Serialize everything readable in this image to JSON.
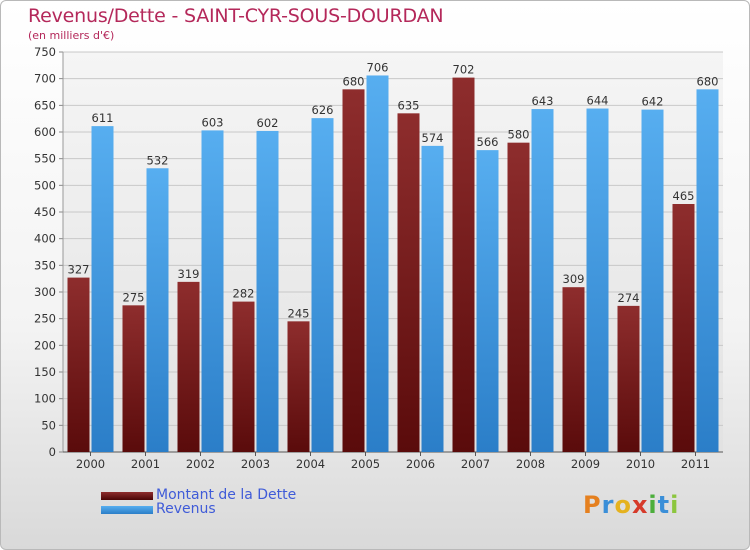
{
  "title": "Revenus/Dette - SAINT-CYR-SOUS-DOURDAN",
  "subtitle": "(en milliers d'€)",
  "colors": {
    "dette": "#7a1a1a",
    "revenus": "#3b93de",
    "title": "#b4285a",
    "legend_text": "#3f5bd8"
  },
  "chart_data": {
    "type": "bar",
    "categories": [
      "2000",
      "2001",
      "2002",
      "2003",
      "2004",
      "2005",
      "2006",
      "2007",
      "2008",
      "2009",
      "2010",
      "2011"
    ],
    "series": [
      {
        "name": "Montant de la Dette",
        "values": [
          327,
          275,
          319,
          282,
          245,
          680,
          635,
          702,
          580,
          309,
          274,
          465
        ]
      },
      {
        "name": "Revenus",
        "values": [
          611,
          532,
          603,
          602,
          626,
          706,
          574,
          566,
          643,
          644,
          642,
          680
        ]
      }
    ],
    "ylim": [
      0,
      750
    ],
    "yticks": [
      0,
      50,
      100,
      150,
      200,
      250,
      300,
      350,
      400,
      450,
      500,
      550,
      600,
      650,
      700,
      750
    ],
    "grid": true,
    "legend_position": "bottom-left"
  },
  "logo": {
    "text": "Proxiti",
    "letters": [
      "P",
      "r",
      "o",
      "x",
      "i",
      "t",
      "i"
    ],
    "icon": "proxiti-logo"
  }
}
